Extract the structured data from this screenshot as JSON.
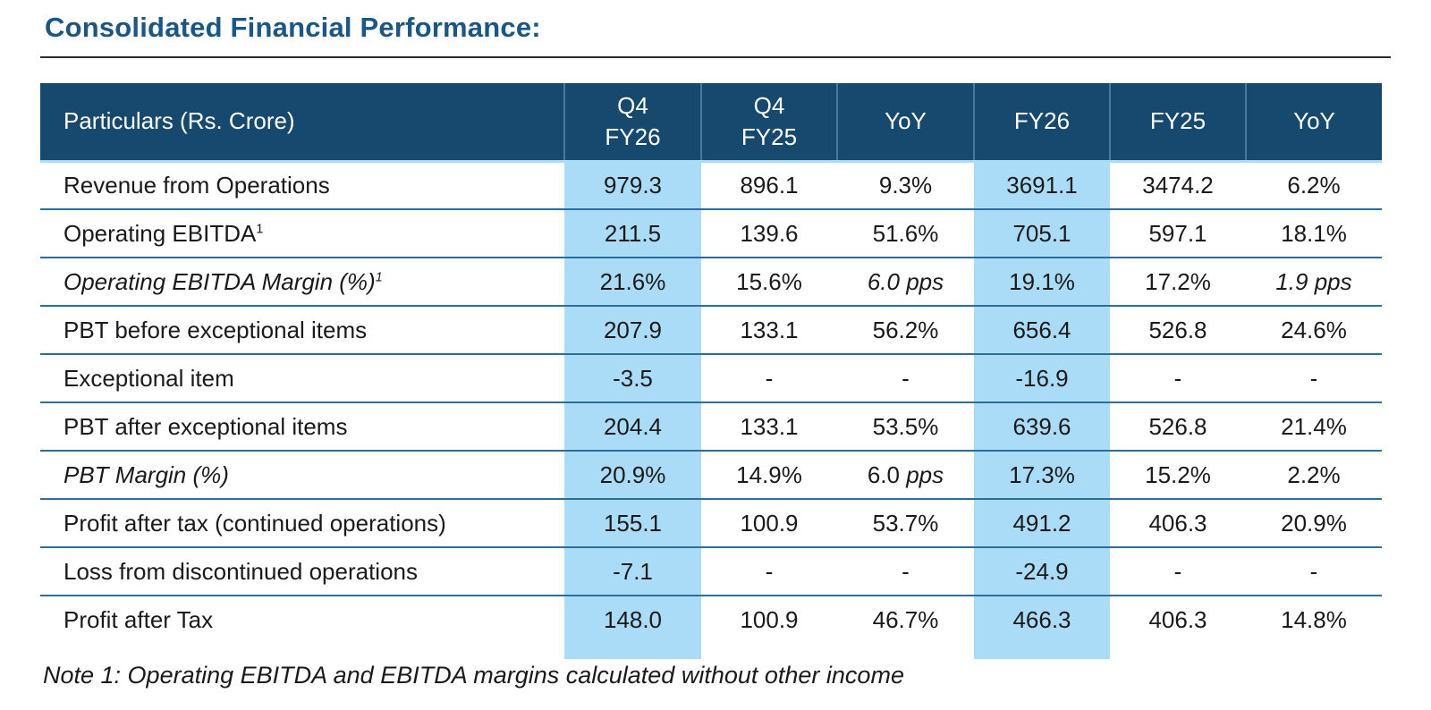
{
  "title": "Consolidated Financial Performance:",
  "note": "Note 1: Operating EBITDA and EBITDA margins calculated without other income",
  "colors": {
    "title_color": "#1b5684",
    "header_bg": "#16496d",
    "header_text": "#ffffff",
    "highlight": "#abdcf7",
    "row_line": "#2c6d9c",
    "title_rule": "#2b2b2b",
    "body_text": "#1a1a1a"
  },
  "table": {
    "header": [
      "Particulars (Rs. Crore)",
      "Q4\nFY26",
      "Q4\nFY25",
      "YoY",
      "FY26",
      "FY25",
      "YoY"
    ],
    "highlight_value_cols": [
      0,
      3
    ],
    "rows": [
      {
        "particulars": "Revenue from Operations",
        "values": [
          "979.3",
          "896.1",
          "9.3%",
          "3691.1",
          "3474.2",
          "6.2%"
        ]
      },
      {
        "particulars": {
          "text": "Operating EBITDA",
          "sup": "1"
        },
        "values": [
          "211.5",
          "139.6",
          "51.6%",
          "705.1",
          "597.1",
          "18.1%"
        ]
      },
      {
        "particulars": {
          "text": "Operating EBITDA Margin (%)",
          "sup": "1",
          "italic": true
        },
        "values": [
          "21.6%",
          "15.6%",
          {
            "text": "6.0 pps",
            "italic": true
          },
          "19.1%",
          "17.2%",
          {
            "text": "1.9 pps",
            "italic": true
          }
        ]
      },
      {
        "particulars": "PBT before exceptional items",
        "values": [
          "207.9",
          "133.1",
          "56.2%",
          "656.4",
          "526.8",
          "24.6%"
        ]
      },
      {
        "particulars": "Exceptional item",
        "values": [
          "-3.5",
          "-",
          "-",
          "-16.9",
          "-",
          "-"
        ]
      },
      {
        "particulars": "PBT after exceptional items",
        "values": [
          "204.4",
          "133.1",
          "53.5%",
          "639.6",
          "526.8",
          "21.4%"
        ]
      },
      {
        "particulars": {
          "text": "PBT Margin (%)",
          "italic": true
        },
        "values": [
          "20.9%",
          "14.9%",
          {
            "segments": [
              {
                "text": "6.0 "
              },
              {
                "text": "pps",
                "italic": true
              }
            ]
          },
          "17.3%",
          "15.2%",
          "2.2%"
        ]
      },
      {
        "particulars": "Profit after tax (continued operations)",
        "values": [
          "155.1",
          "100.9",
          "53.7%",
          "491.2",
          "406.3",
          "20.9%"
        ]
      },
      {
        "particulars": "Loss from discontinued operations",
        "values": [
          "-7.1",
          "-",
          "-",
          "-24.9",
          "-",
          "-"
        ]
      },
      {
        "particulars": "Profit after Tax",
        "values": [
          "148.0",
          "100.9",
          "46.7%",
          "466.3",
          "406.3",
          "14.8%"
        ]
      }
    ]
  }
}
